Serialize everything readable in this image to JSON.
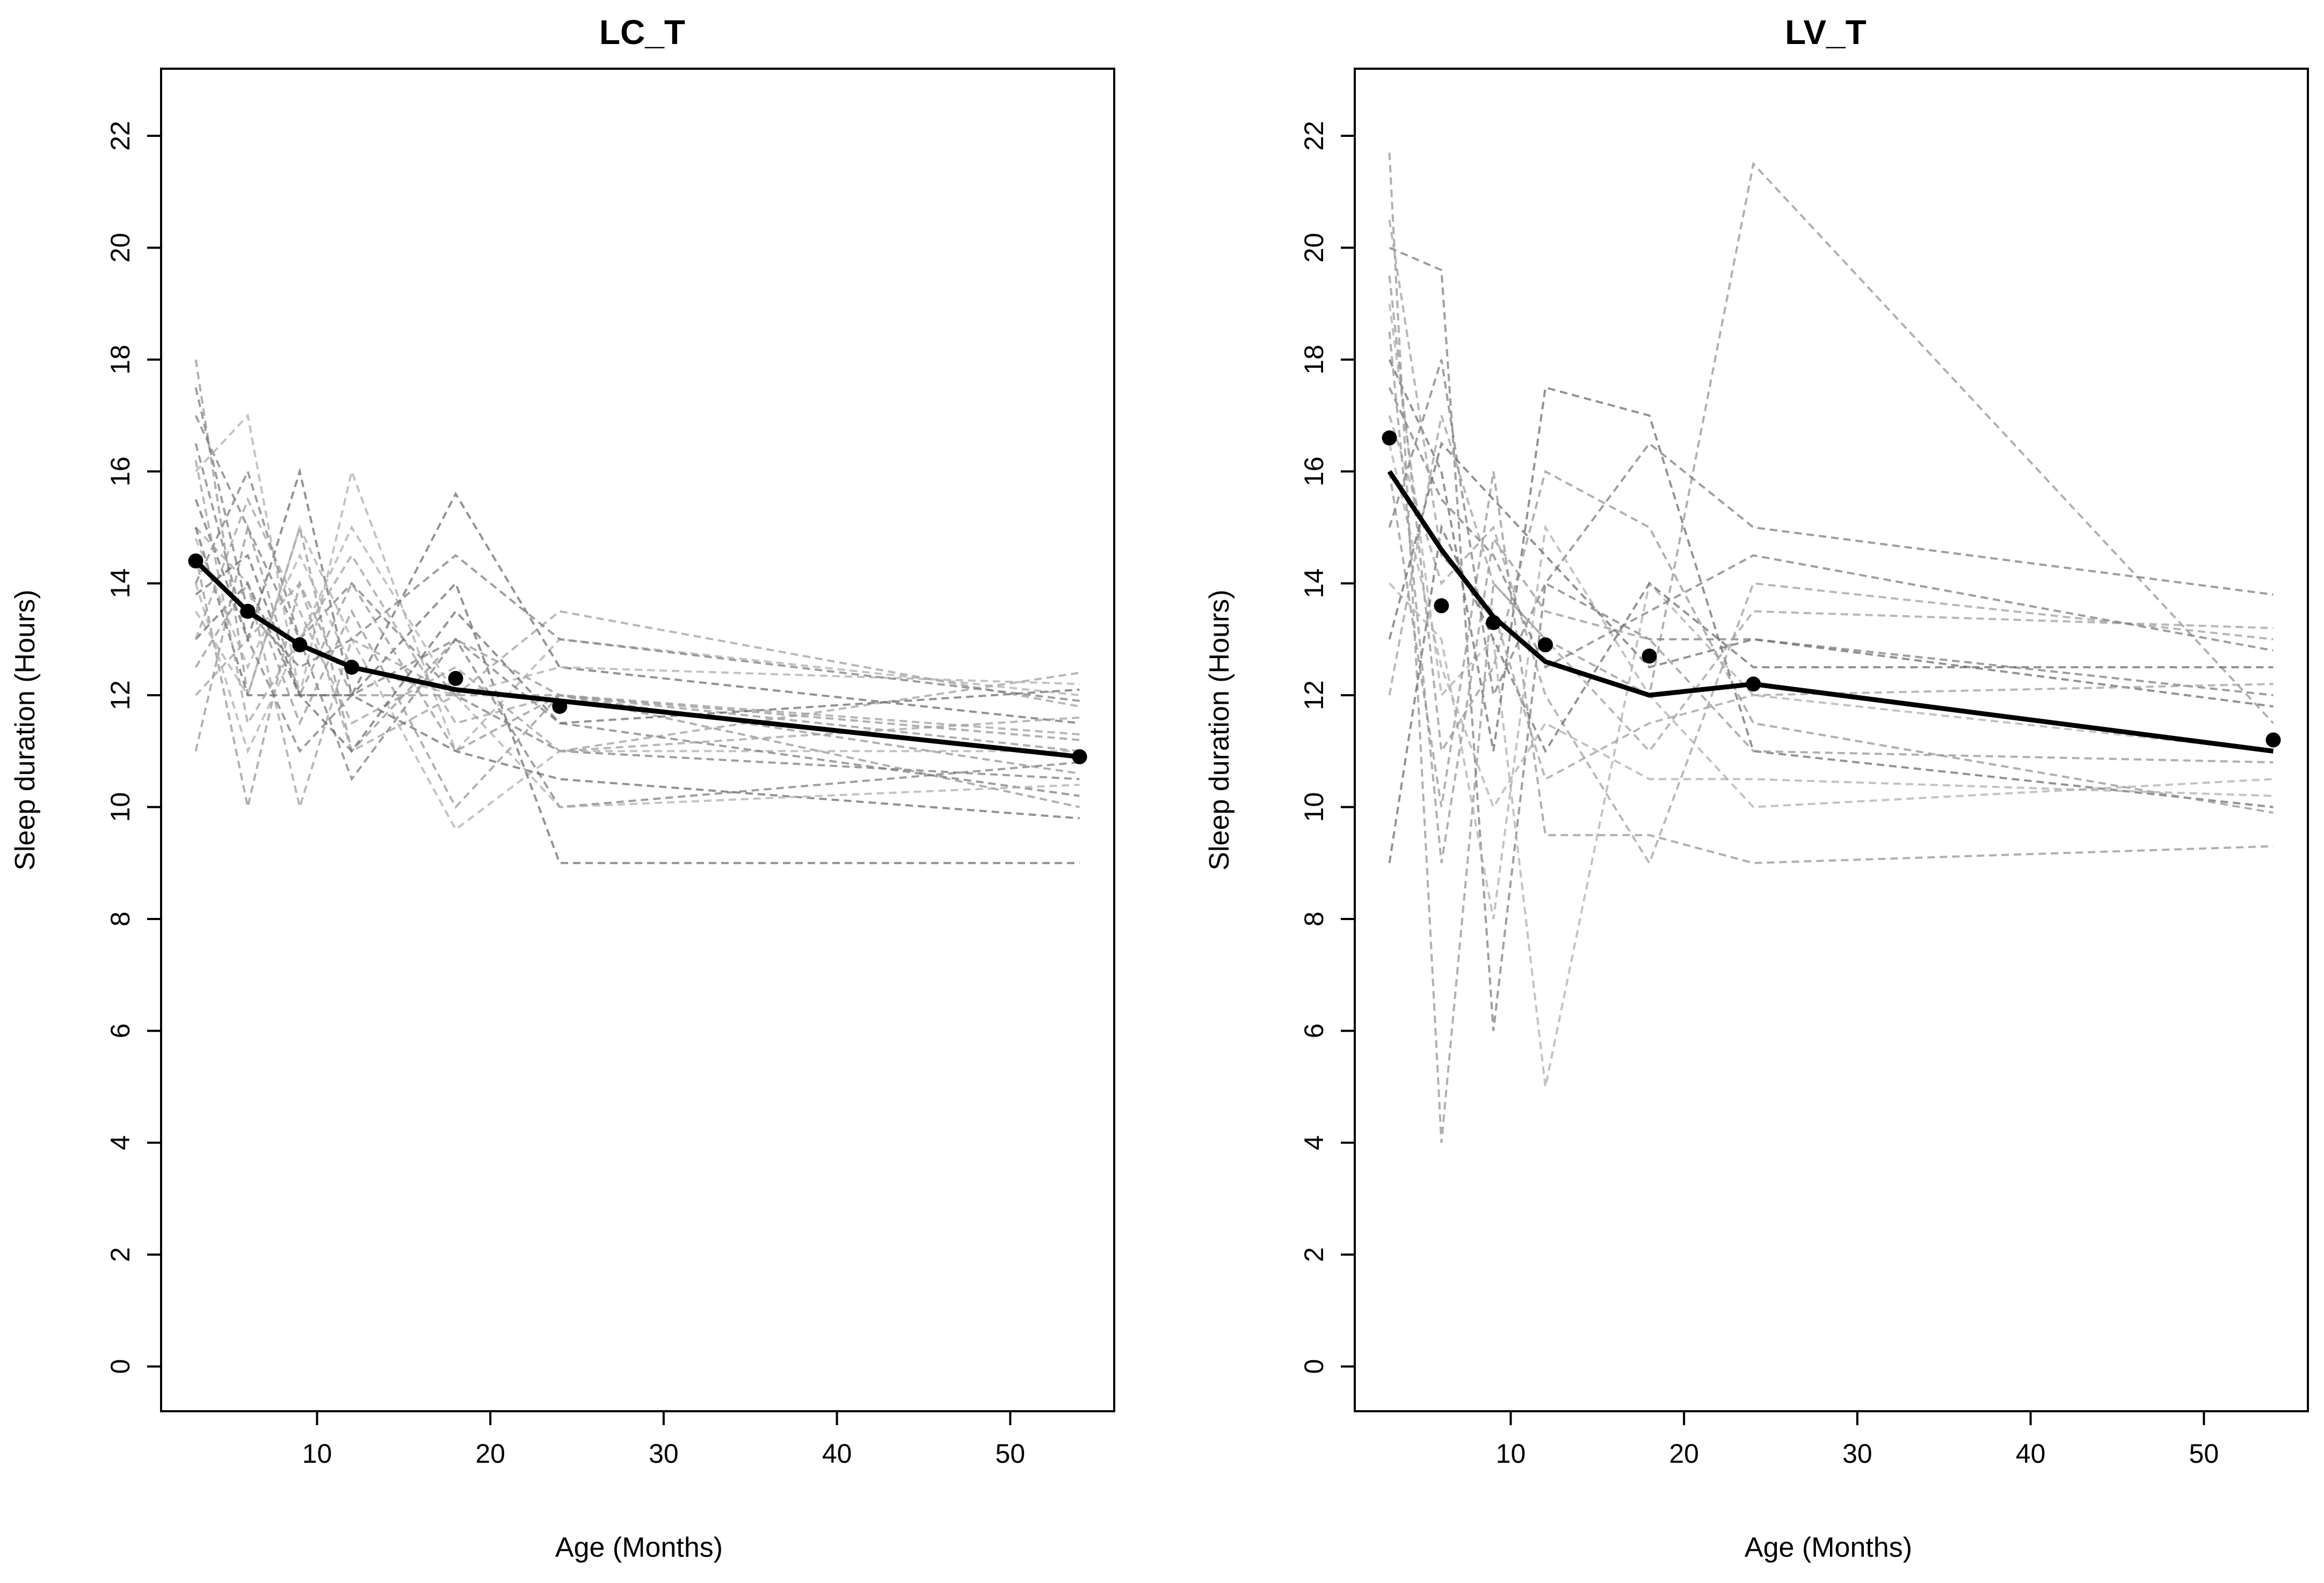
{
  "chart_data": [
    {
      "type": "line",
      "title": "LC_T",
      "xlabel": "Age (Months)",
      "ylabel": "Sleep duration (Hours)",
      "xlim": [
        1,
        56
      ],
      "ylim": [
        -0.8,
        23.2
      ],
      "xticks": [
        10,
        20,
        30,
        40,
        50
      ],
      "yticks": [
        0,
        2,
        4,
        6,
        8,
        10,
        12,
        14,
        16,
        18,
        20,
        22
      ],
      "grid": false,
      "series": [
        {
          "name": "mean trajectory",
          "style": "solid-thick",
          "x": [
            3,
            6,
            9,
            12,
            18,
            24,
            54
          ],
          "y": [
            14.4,
            13.5,
            12.9,
            12.5,
            12.1,
            11.9,
            10.9
          ]
        },
        {
          "name": "observed means",
          "style": "points",
          "x": [
            3,
            6,
            9,
            12,
            18,
            24,
            54
          ],
          "y": [
            14.4,
            13.5,
            12.9,
            12.5,
            12.3,
            11.8,
            10.9
          ]
        }
      ],
      "individual_trajectories": {
        "style": "dashed-grey",
        "x": [
          3,
          6,
          9,
          12,
          18,
          24,
          54
        ],
        "lines": [
          [
            18.0,
            12.0,
            15.0,
            11.0,
            13.0,
            12.0,
            11.0
          ],
          [
            17.0,
            15.0,
            13.0,
            14.0,
            12.0,
            11.0,
            10.5
          ],
          [
            16.0,
            17.0,
            12.0,
            16.0,
            11.0,
            13.0,
            12.0
          ],
          [
            15.5,
            13.0,
            16.0,
            12.0,
            15.6,
            12.5,
            11.5
          ],
          [
            15.0,
            14.0,
            10.0,
            13.0,
            12.0,
            11.0,
            12.4
          ],
          [
            14.5,
            10.0,
            14.0,
            12.0,
            12.0,
            12.0,
            10.0
          ],
          [
            14.0,
            16.0,
            13.0,
            10.5,
            13.0,
            10.0,
            10.8
          ],
          [
            13.5,
            12.0,
            15.0,
            13.0,
            9.6,
            11.0,
            11.0
          ],
          [
            13.0,
            14.0,
            12.0,
            12.0,
            14.0,
            9.0,
            9.0
          ],
          [
            12.0,
            13.0,
            14.0,
            11.0,
            12.0,
            13.5,
            11.8
          ],
          [
            11.0,
            15.0,
            12.0,
            14.0,
            11.0,
            12.0,
            11.2
          ],
          [
            16.5,
            13.0,
            11.0,
            12.0,
            13.0,
            11.5,
            10.2
          ],
          [
            14.0,
            11.0,
            13.0,
            15.0,
            12.0,
            12.5,
            12.2
          ],
          [
            15.0,
            12.0,
            12.0,
            12.0,
            11.0,
            10.5,
            9.8
          ],
          [
            13.0,
            15.5,
            13.5,
            11.5,
            12.5,
            11.0,
            11.6
          ],
          [
            12.5,
            14.0,
            11.5,
            13.5,
            10.0,
            12.0,
            10.6
          ],
          [
            17.5,
            13.5,
            12.5,
            13.0,
            14.5,
            13.0,
            11.9
          ],
          [
            14.8,
            12.5,
            14.5,
            12.5,
            12.0,
            10.0,
            10.4
          ],
          [
            13.8,
            14.5,
            12.0,
            11.0,
            13.5,
            11.5,
            12.1
          ],
          [
            16.2,
            11.5,
            13.0,
            14.5,
            11.5,
            12.0,
            11.3
          ]
        ]
      }
    },
    {
      "type": "line",
      "title": "LV_T",
      "xlabel": "Age (Months)",
      "ylabel": "Sleep duration (Hours)",
      "xlim": [
        1,
        56
      ],
      "ylim": [
        -0.8,
        23.2
      ],
      "xticks": [
        10,
        20,
        30,
        40,
        50
      ],
      "yticks": [
        0,
        2,
        4,
        6,
        8,
        10,
        12,
        14,
        16,
        18,
        20,
        22
      ],
      "grid": false,
      "series": [
        {
          "name": "mean trajectory",
          "style": "solid-thick",
          "x": [
            3,
            6,
            9,
            12,
            18,
            24,
            54
          ],
          "y": [
            16.0,
            14.6,
            13.4,
            12.6,
            12.0,
            12.2,
            11.0
          ]
        },
        {
          "name": "observed means",
          "style": "points",
          "x": [
            3,
            6,
            9,
            12,
            18,
            24,
            54
          ],
          "y": [
            16.6,
            13.6,
            13.3,
            12.9,
            12.7,
            12.2,
            11.2
          ]
        }
      ],
      "individual_trajectories": {
        "style": "dashed-grey",
        "x": [
          3,
          6,
          9,
          12,
          18,
          24,
          54
        ],
        "lines": [
          [
            21.7,
            4.0,
            14.0,
            13.0,
            12.0,
            21.5,
            11.5
          ],
          [
            20.0,
            19.6,
            6.0,
            14.0,
            13.0,
            13.0,
            12.0
          ],
          [
            19.0,
            12.0,
            13.0,
            5.0,
            14.0,
            12.0,
            11.0
          ],
          [
            18.0,
            16.0,
            11.0,
            17.5,
            17.0,
            11.0,
            10.0
          ],
          [
            17.0,
            14.0,
            15.0,
            12.0,
            9.0,
            14.0,
            13.0
          ],
          [
            16.0,
            10.0,
            16.0,
            9.5,
            9.5,
            9.0,
            9.3
          ],
          [
            15.0,
            18.0,
            12.0,
            14.0,
            16.5,
            15.0,
            13.8
          ],
          [
            14.0,
            13.0,
            8.0,
            15.0,
            12.0,
            10.0,
            10.5
          ],
          [
            9.0,
            15.0,
            13.0,
            11.0,
            14.0,
            12.5,
            12.5
          ],
          [
            12.0,
            17.0,
            14.0,
            13.0,
            11.0,
            13.5,
            13.2
          ],
          [
            19.5,
            11.0,
            12.5,
            16.0,
            15.0,
            11.5,
            9.9
          ],
          [
            17.5,
            15.5,
            14.5,
            12.5,
            13.5,
            14.5,
            12.8
          ],
          [
            16.5,
            12.5,
            10.0,
            11.5,
            10.5,
            10.5,
            10.2
          ],
          [
            13.0,
            16.5,
            15.5,
            14.5,
            12.5,
            13.0,
            11.8
          ],
          [
            20.5,
            14.5,
            13.5,
            10.5,
            11.5,
            12.0,
            12.2
          ],
          [
            18.5,
            9.0,
            14.8,
            13.5,
            13.0,
            11.0,
            10.8
          ]
        ]
      }
    }
  ]
}
